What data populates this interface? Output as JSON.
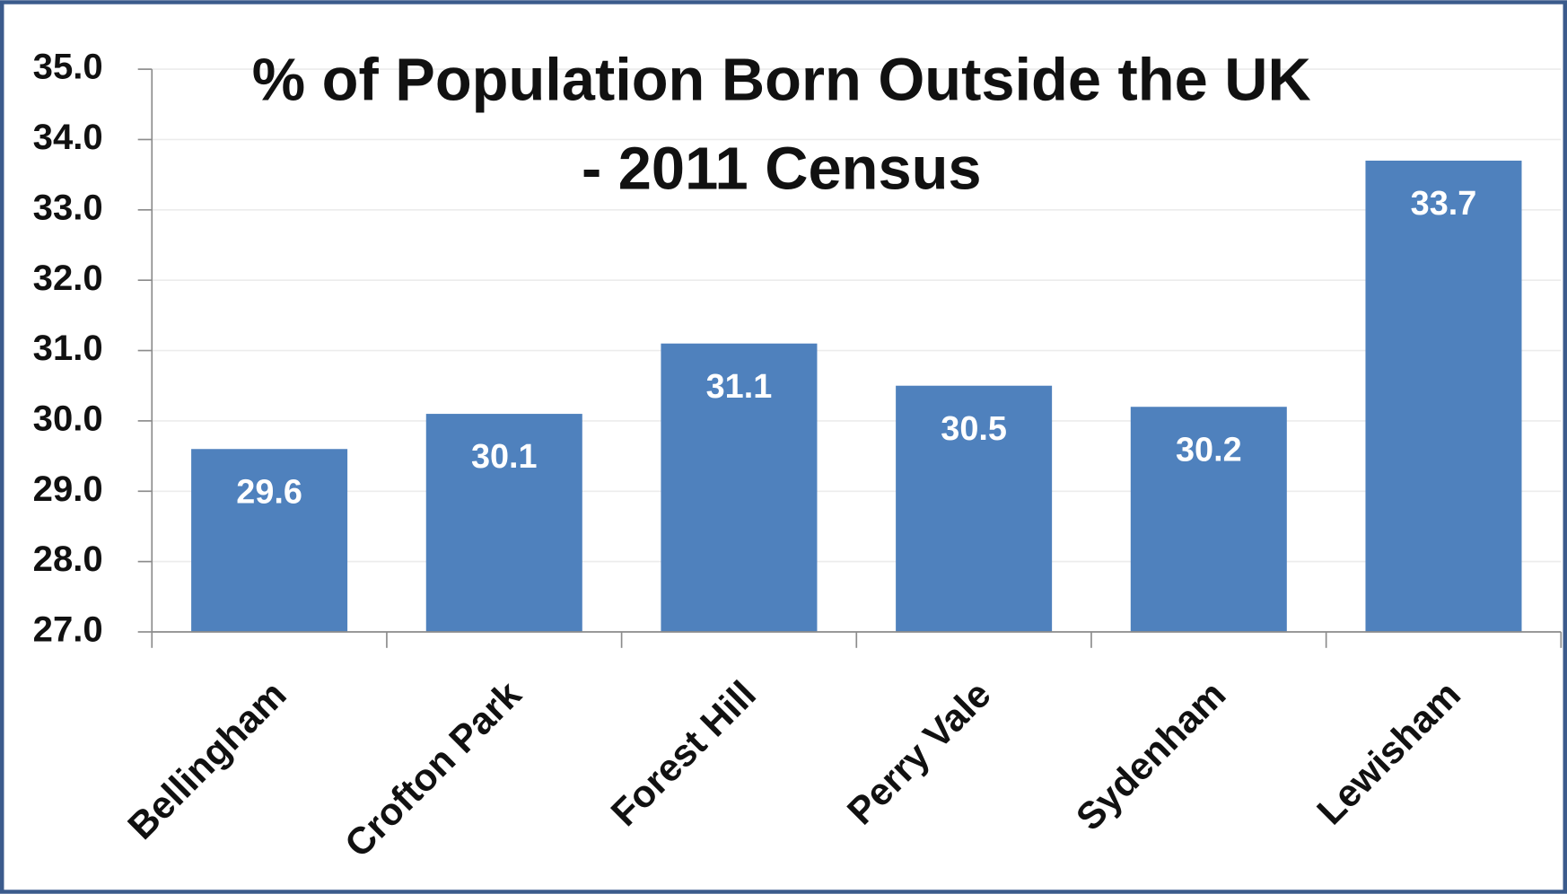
{
  "chart_data": {
    "type": "bar",
    "title": [
      "% of Population Born Outside the UK",
      "- 2011 Census"
    ],
    "categories": [
      "Bellingham",
      "Crofton Park",
      "Forest Hill",
      "Perry Vale",
      "Sydenham",
      "Lewisham"
    ],
    "values": [
      29.6,
      30.1,
      31.1,
      30.5,
      30.2,
      33.7
    ],
    "color": "#4f81bd",
    "ylim": [
      27,
      35
    ],
    "yticks": [
      {
        "value": 27,
        "label": "27.0"
      },
      {
        "value": 28,
        "label": "28.0"
      },
      {
        "value": 29,
        "label": "29.0"
      },
      {
        "value": 30,
        "label": "30.0"
      },
      {
        "value": 31,
        "label": "31.0"
      },
      {
        "value": 32,
        "label": "32.0"
      },
      {
        "value": 33,
        "label": "33.0"
      },
      {
        "value": 34,
        "label": "34.0"
      },
      {
        "value": 35,
        "label": "35.0"
      }
    ],
    "grid": true
  }
}
